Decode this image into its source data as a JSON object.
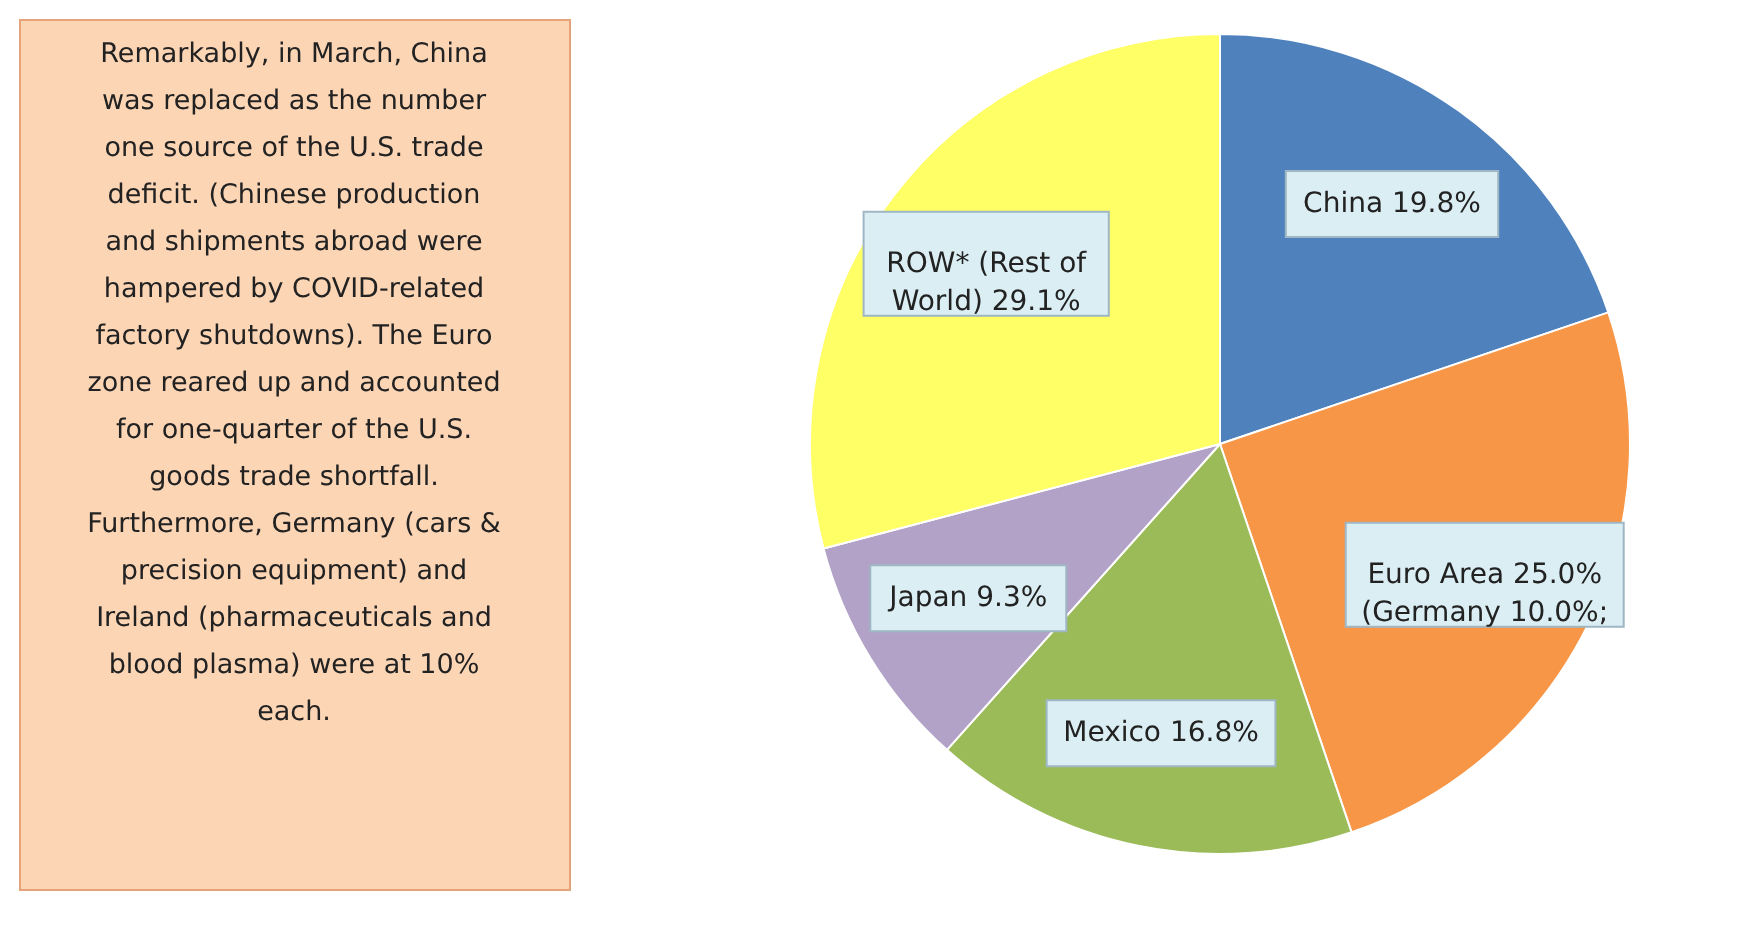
{
  "chart_data": {
    "type": "pie",
    "categories": [
      "China",
      "Euro Area",
      "Mexico",
      "Japan",
      "ROW* (Rest of World)"
    ],
    "values": [
      19.8,
      25.0,
      16.8,
      9.3,
      29.1
    ],
    "value_labels": [
      "19.8%",
      "25.0% (Germany 10.0%;",
      "16.8%",
      "9.3%",
      "29.1%"
    ],
    "colors": [
      "#4f81bd",
      "#f79646",
      "#9bbb59",
      "#b3a2c7",
      "#ffff66"
    ],
    "annotations": [
      "Remarkably, in March, China was replaced as the number one source of the U.S. trade deficit. (Chinese production and shipments abroad were hampered by COVID-related factory shutdowns). The Euro zone reared up and accounted for one-quarter of the U.S. goods trade shortfall. Furthermore, Germany (cars & precision equipment) and Ireland (pharmaceuticals and blood plasma) were at 10% each."
    ]
  }
}
